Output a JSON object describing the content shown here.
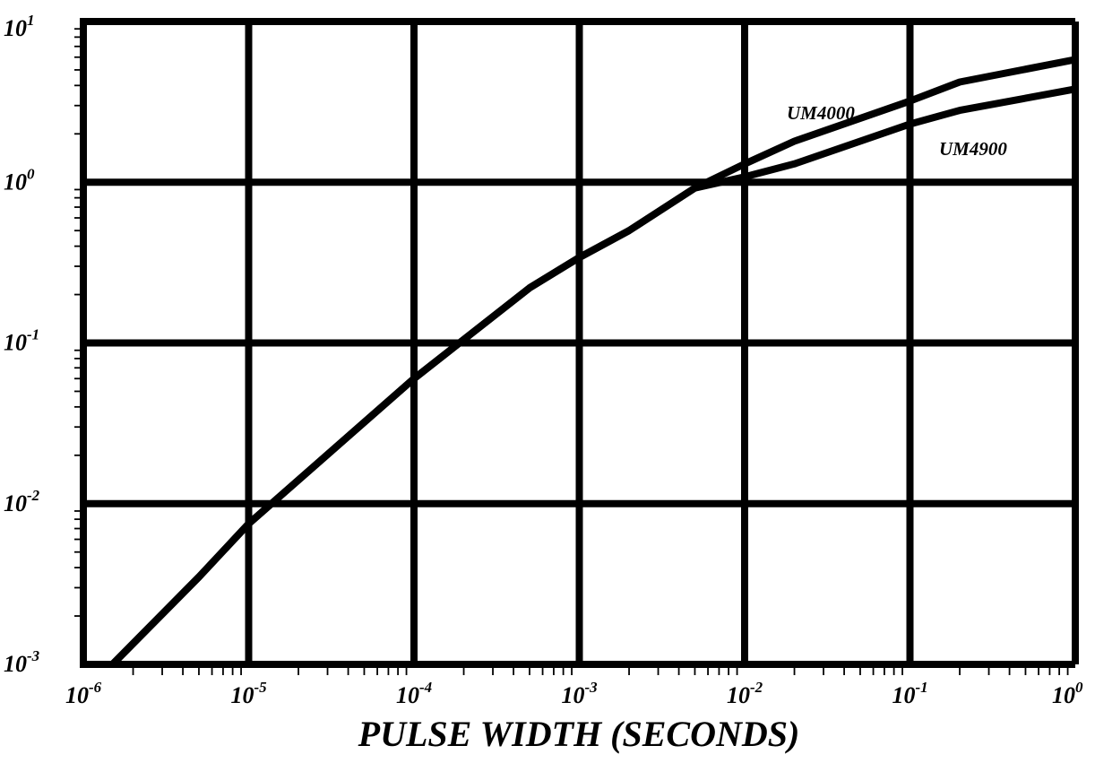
{
  "chart_data": {
    "type": "line",
    "title": "",
    "xlabel": "PULSE WIDTH (SECONDS)",
    "ylabel": "",
    "x_scale": "log",
    "y_scale": "log",
    "xlim": [
      1e-06,
      1
    ],
    "ylim": [
      0.001,
      10
    ],
    "grid": true,
    "legend": "none",
    "x_ticks": [
      {
        "base": "10",
        "exp": "-6",
        "value": 1e-06
      },
      {
        "base": "10",
        "exp": "-5",
        "value": 1e-05
      },
      {
        "base": "10",
        "exp": "-4",
        "value": 0.0001
      },
      {
        "base": "10",
        "exp": "-3",
        "value": 0.001
      },
      {
        "base": "10",
        "exp": "-2",
        "value": 0.01
      },
      {
        "base": "10",
        "exp": "-1",
        "value": 0.1
      },
      {
        "base": "10",
        "exp": "0",
        "value": 1
      }
    ],
    "y_ticks": [
      {
        "base": "10",
        "exp": "-3",
        "value": 0.001
      },
      {
        "base": "10",
        "exp": "-2",
        "value": 0.01
      },
      {
        "base": "10",
        "exp": "-1",
        "value": 0.1
      },
      {
        "base": "10",
        "exp": "0",
        "value": 1
      },
      {
        "base": "10",
        "exp": "1",
        "value": 10
      }
    ],
    "series": [
      {
        "name": "UM4000",
        "x": [
          1.5e-06,
          5e-06,
          1e-05,
          0.0001,
          0.0005,
          0.001,
          0.002,
          0.005,
          0.01,
          0.02,
          0.1,
          0.2,
          1
        ],
        "y": [
          0.001,
          0.0035,
          0.0075,
          0.06,
          0.22,
          0.34,
          0.5,
          0.92,
          1.3,
          1.8,
          3.2,
          4.2,
          5.8
        ]
      },
      {
        "name": "UM4900",
        "x": [
          1.5e-06,
          5e-06,
          1e-05,
          0.0001,
          0.0005,
          0.001,
          0.002,
          0.005,
          0.01,
          0.02,
          0.1,
          0.2,
          1
        ],
        "y": [
          0.001,
          0.0035,
          0.0075,
          0.06,
          0.22,
          0.34,
          0.5,
          0.92,
          1.08,
          1.3,
          2.3,
          2.8,
          3.8
        ]
      }
    ]
  }
}
